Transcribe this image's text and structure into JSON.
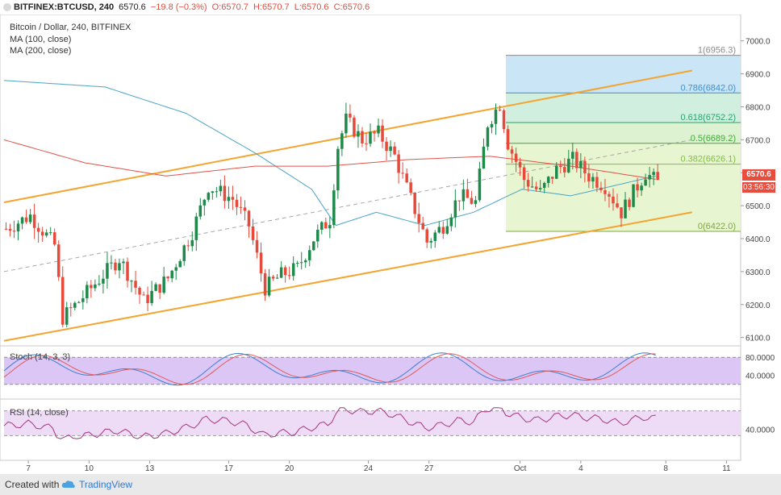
{
  "header": {
    "symbol": "BITFINEX:BTCUSD, 240",
    "last": "6570.6",
    "change": "−19.8 (−0.3%)",
    "ohlc": [
      "O:6570.7",
      "H:6570.7",
      "L:6570.6",
      "C:6570.6"
    ]
  },
  "legend": {
    "title": "Bitcoin / Dollar, 240, BITFINEX",
    "ma1": "MA (100, close)",
    "ma2": "MA (200, close)"
  },
  "price_tag": "6570.6",
  "clock_tag": "03:56:30",
  "stoch_label": "Stoch (14, 3, 3)",
  "rsi_label": "RSI (14, close)",
  "footer": {
    "created": "Created with",
    "brand": "TradingView"
  },
  "colors": {
    "up": "#1e8a4a",
    "down": "#e64a3b",
    "channel": "#f4a42f",
    "ma100": "#4aa3c6",
    "ma200": "#e2524a",
    "stoch_k": "#3d7fd0",
    "stoch_d": "#e05a5a",
    "rsi": "#a2357e",
    "panel_fill": "#dcc6f5"
  },
  "chart_data": {
    "type": "candlestick",
    "title": "Bitcoin / Dollar, 240, BITFINEX",
    "y_ticks": [
      "7000.0",
      "6900.0",
      "6800.0",
      "6700.0",
      "6600.0",
      "6500.0",
      "6400.0",
      "6300.0",
      "6200.0",
      "6100.0"
    ],
    "ylim": [
      6060,
      7080
    ],
    "x_ticks": [
      "7",
      "10",
      "13",
      "17",
      "20",
      "24",
      "27",
      "Oct",
      "4",
      "8",
      "11"
    ],
    "close_path": [
      [
        0,
        6430
      ],
      [
        6,
        6470
      ],
      [
        12,
        6380
      ],
      [
        14,
        6160
      ],
      [
        18,
        6210
      ],
      [
        24,
        6290
      ],
      [
        28,
        6340
      ],
      [
        34,
        6210
      ],
      [
        40,
        6280
      ],
      [
        46,
        6420
      ],
      [
        50,
        6560
      ],
      [
        56,
        6520
      ],
      [
        60,
        6440
      ],
      [
        64,
        6250
      ],
      [
        68,
        6290
      ],
      [
        72,
        6310
      ],
      [
        76,
        6400
      ],
      [
        80,
        6460
      ],
      [
        82,
        6680
      ],
      [
        84,
        6760
      ],
      [
        88,
        6700
      ],
      [
        92,
        6720
      ],
      [
        96,
        6650
      ],
      [
        100,
        6520
      ],
      [
        104,
        6390
      ],
      [
        108,
        6440
      ],
      [
        112,
        6530
      ],
      [
        116,
        6510
      ],
      [
        119,
        6750
      ],
      [
        122,
        6810
      ],
      [
        124,
        6690
      ],
      [
        128,
        6580
      ],
      [
        132,
        6540
      ],
      [
        136,
        6610
      ],
      [
        140,
        6640
      ],
      [
        144,
        6590
      ],
      [
        148,
        6560
      ],
      [
        152,
        6480
      ],
      [
        154,
        6520
      ],
      [
        158,
        6600
      ],
      [
        161,
        6570
      ]
    ],
    "ma100": [
      [
        0,
        6880
      ],
      [
        25,
        6860
      ],
      [
        45,
        6780
      ],
      [
        62,
        6660
      ],
      [
        76,
        6550
      ],
      [
        82,
        6440
      ],
      [
        92,
        6480
      ],
      [
        104,
        6440
      ],
      [
        116,
        6480
      ],
      [
        128,
        6550
      ],
      [
        140,
        6530
      ],
      [
        161,
        6590
      ]
    ],
    "ma200": [
      [
        0,
        6700
      ],
      [
        20,
        6630
      ],
      [
        40,
        6590
      ],
      [
        62,
        6620
      ],
      [
        80,
        6620
      ],
      [
        100,
        6640
      ],
      [
        120,
        6650
      ],
      [
        140,
        6620
      ],
      [
        161,
        6580
      ]
    ],
    "channel_upper": [
      [
        0,
        6510
      ],
      [
        170,
        6910
      ]
    ],
    "channel_lower": [
      [
        0,
        6090
      ],
      [
        170,
        6480
      ]
    ],
    "channel_mid": [
      [
        0,
        6300
      ],
      [
        170,
        6700
      ]
    ],
    "fibonacci": {
      "levels": [
        {
          "ratio": "1",
          "price": 6956.3,
          "label": "1(6956.3)",
          "fill": "#dcdcdc"
        },
        {
          "ratio": "0.786",
          "price": 6842.0,
          "label": "0.786(6842.0)",
          "fill": "#bfe0f4"
        },
        {
          "ratio": "0.618",
          "price": 6752.2,
          "label": "0.618(6752.2)",
          "fill": "#c8ecd9"
        },
        {
          "ratio": "0.5",
          "price": 6689.2,
          "label": "0.5(6689.2)",
          "fill": "#d6f0c8"
        },
        {
          "ratio": "0.382",
          "price": 6626.1,
          "label": "0.382(6626.1)",
          "fill": "#e3f3c9"
        },
        {
          "ratio": "0",
          "price": 6422.0,
          "label": "0(6422.0)",
          "fill": "#e3f3c9"
        }
      ],
      "x_range": [
        124,
        182
      ]
    },
    "stoch": {
      "y_ticks": [
        "80.0000",
        "40.0000"
      ],
      "band": [
        20,
        80
      ]
    },
    "rsi": {
      "y_ticks": [
        "40.0000"
      ],
      "band": [
        30,
        70
      ]
    }
  }
}
